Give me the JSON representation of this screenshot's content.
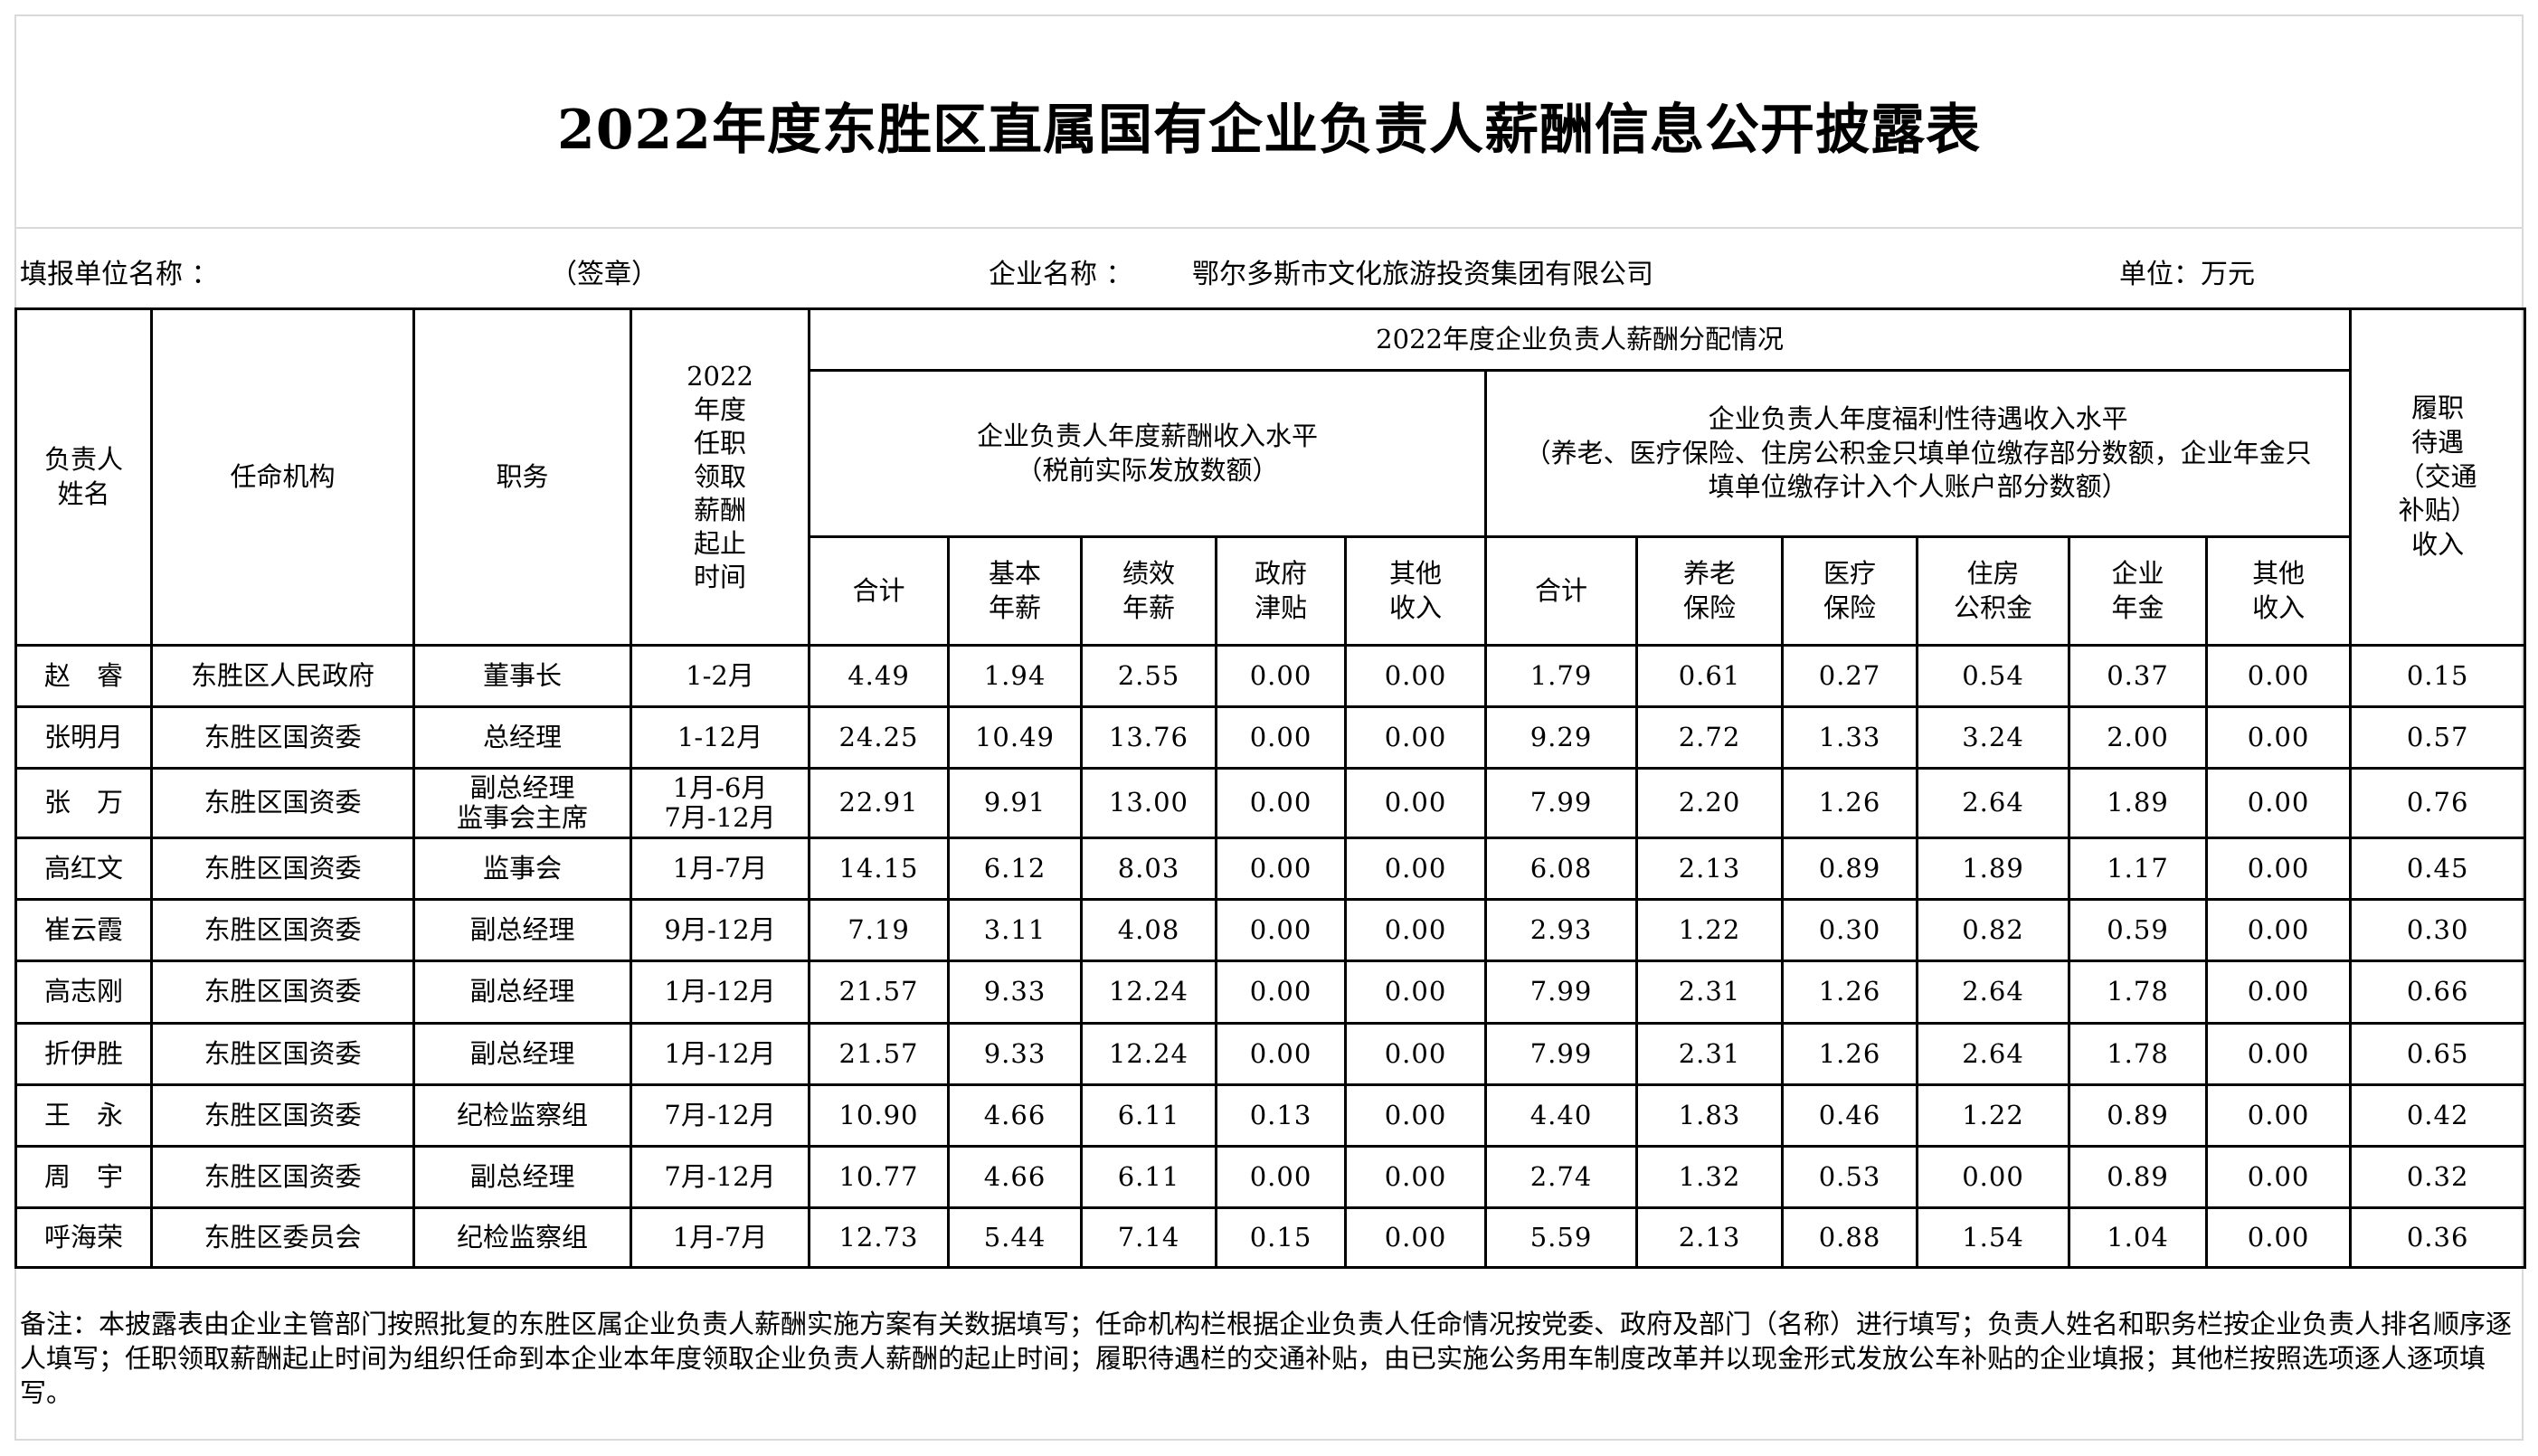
{
  "title": "2022年度东胜区直属国有企业负责人薪酬信息公开披露表",
  "info": {
    "reporting_unit_label": "填报单位名称 ：",
    "seal_label": "（签章）",
    "company_label": "企业名称 ：",
    "company_name": "鄂尔多斯市文化旅游投资集团有限公司",
    "unit_label": "单位：万元"
  },
  "header": {
    "name": "负责人\n姓名",
    "appointing_body": "任命机构",
    "position": "职务",
    "period": "2022\n年度\n任职\n领取\n薪酬\n起止\n时间",
    "distribution": "2022年度企业负责人薪酬分配情况",
    "salary_group": "企业负责人年度薪酬收入水平\n（税前实际发放数额）",
    "welfare_group": "企业负责人年度福利性待遇收入水平\n（养老、医疗保险、住房公积金只填单位缴存部分数额，企业年金只填单位缴存计入个人账户部分数额）",
    "duty_allowance": "履职\n待遇\n（交通\n补贴）\n收入",
    "salary_cols": [
      "合计",
      "基本\n年薪",
      "绩效\n年薪",
      "政府\n津贴",
      "其他\n收入"
    ],
    "welfare_cols": [
      "合计",
      "养老\n保险",
      "医疗\n保险",
      "住房\n公积金",
      "企业\n年金",
      "其他\n收入"
    ]
  },
  "rows": [
    [
      "赵　睿",
      "东胜区人民政府",
      "董事长",
      "1-2月",
      "4.49",
      "1.94",
      "2.55",
      "0.00",
      "0.00",
      "1.79",
      "0.61",
      "0.27",
      "0.54",
      "0.37",
      "0.00",
      "0.15"
    ],
    [
      "张明月",
      "东胜区国资委",
      "总经理",
      "1-12月",
      "24.25",
      "10.49",
      "13.76",
      "0.00",
      "0.00",
      "9.29",
      "2.72",
      "1.33",
      "3.24",
      "2.00",
      "0.00",
      "0.57"
    ],
    [
      "张　万",
      "东胜区国资委",
      "副总经理\n监事会主席",
      "1月-6月\n7月-12月",
      "22.91",
      "9.91",
      "13.00",
      "0.00",
      "0.00",
      "7.99",
      "2.20",
      "1.26",
      "2.64",
      "1.89",
      "0.00",
      "0.76"
    ],
    [
      "高红文",
      "东胜区国资委",
      "监事会",
      "1月-7月",
      "14.15",
      "6.12",
      "8.03",
      "0.00",
      "0.00",
      "6.08",
      "2.13",
      "0.89",
      "1.89",
      "1.17",
      "0.00",
      "0.45"
    ],
    [
      "崔云霞",
      "东胜区国资委",
      "副总经理",
      "9月-12月",
      "7.19",
      "3.11",
      "4.08",
      "0.00",
      "0.00",
      "2.93",
      "1.22",
      "0.30",
      "0.82",
      "0.59",
      "0.00",
      "0.30"
    ],
    [
      "高志刚",
      "东胜区国资委",
      "副总经理",
      "1月-12月",
      "21.57",
      "9.33",
      "12.24",
      "0.00",
      "0.00",
      "7.99",
      "2.31",
      "1.26",
      "2.64",
      "1.78",
      "0.00",
      "0.66"
    ],
    [
      "折伊胜",
      "东胜区国资委",
      "副总经理",
      "1月-12月",
      "21.57",
      "9.33",
      "12.24",
      "0.00",
      "0.00",
      "7.99",
      "2.31",
      "1.26",
      "2.64",
      "1.78",
      "0.00",
      "0.65"
    ],
    [
      "王　永",
      "东胜区国资委",
      "纪检监察组",
      "7月-12月",
      "10.90",
      "4.66",
      "6.11",
      "0.13",
      "0.00",
      "4.40",
      "1.83",
      "0.46",
      "1.22",
      "0.89",
      "0.00",
      "0.42"
    ],
    [
      "周　宇",
      "东胜区国资委",
      "副总经理",
      "7月-12月",
      "10.77",
      "4.66",
      "6.11",
      "0.00",
      "0.00",
      "2.74",
      "1.32",
      "0.53",
      "0.00",
      "0.89",
      "0.00",
      "0.32"
    ],
    [
      "呼海荣",
      "东胜区委员会",
      "纪检监察组",
      "1月-7月",
      "12.73",
      "5.44",
      "7.14",
      "0.15",
      "0.00",
      "5.59",
      "2.13",
      "0.88",
      "1.54",
      "1.04",
      "0.00",
      "0.36"
    ]
  ],
  "note": "备注：本披露表由企业主管部门按照批复的东胜区属企业负责人薪酬实施方案有关数据填写；任命机构栏根据企业负责人任命情况按党委、政府及部门（名称）进行填写；负责人姓名和职务栏按企业负责人排名顺序逐人填写；任职领取薪酬起止时间为组织任命到本企业本年度领取企业负责人薪酬的起止时间；履职待遇栏的交通补贴，由已实施公务用车制度改革并以现金形式发放公车补贴的企业填报；其他栏按照选项逐人逐项填写。"
}
